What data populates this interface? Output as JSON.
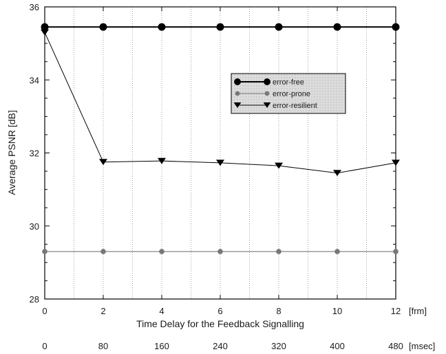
{
  "chart_data": {
    "type": "line",
    "xlabel": "Time Delay for the Feedback Signalling",
    "ylabel": "Average PSNR [dB]",
    "x": [
      0,
      2,
      4,
      6,
      8,
      10,
      12
    ],
    "xlim": [
      0,
      12
    ],
    "ylim": [
      28,
      36
    ],
    "x_ticks": [
      0,
      2,
      4,
      6,
      8,
      10,
      12
    ],
    "y_ticks": [
      28,
      30,
      32,
      34,
      36
    ],
    "x_unit": "[frm]",
    "secondary_x_ticks": [
      "0",
      "80",
      "160",
      "240",
      "320",
      "400",
      "480"
    ],
    "secondary_x_unit": "[msec]",
    "grid": "vertical dotted at every frame",
    "legend_position": "upper-right",
    "series": [
      {
        "name": "error-free",
        "marker": "circle",
        "color": "#000000",
        "values": [
          35.45,
          35.45,
          35.45,
          35.45,
          35.45,
          35.45,
          35.45
        ]
      },
      {
        "name": "error-prone",
        "marker": "small-circle",
        "color": "#777777",
        "values": [
          29.3,
          29.3,
          29.3,
          29.3,
          29.3,
          29.3,
          29.3
        ]
      },
      {
        "name": "error-resilient",
        "marker": "triangle-down",
        "color": "#000000",
        "values": [
          35.3,
          31.75,
          31.78,
          31.73,
          31.65,
          31.45,
          31.73
        ]
      }
    ]
  }
}
